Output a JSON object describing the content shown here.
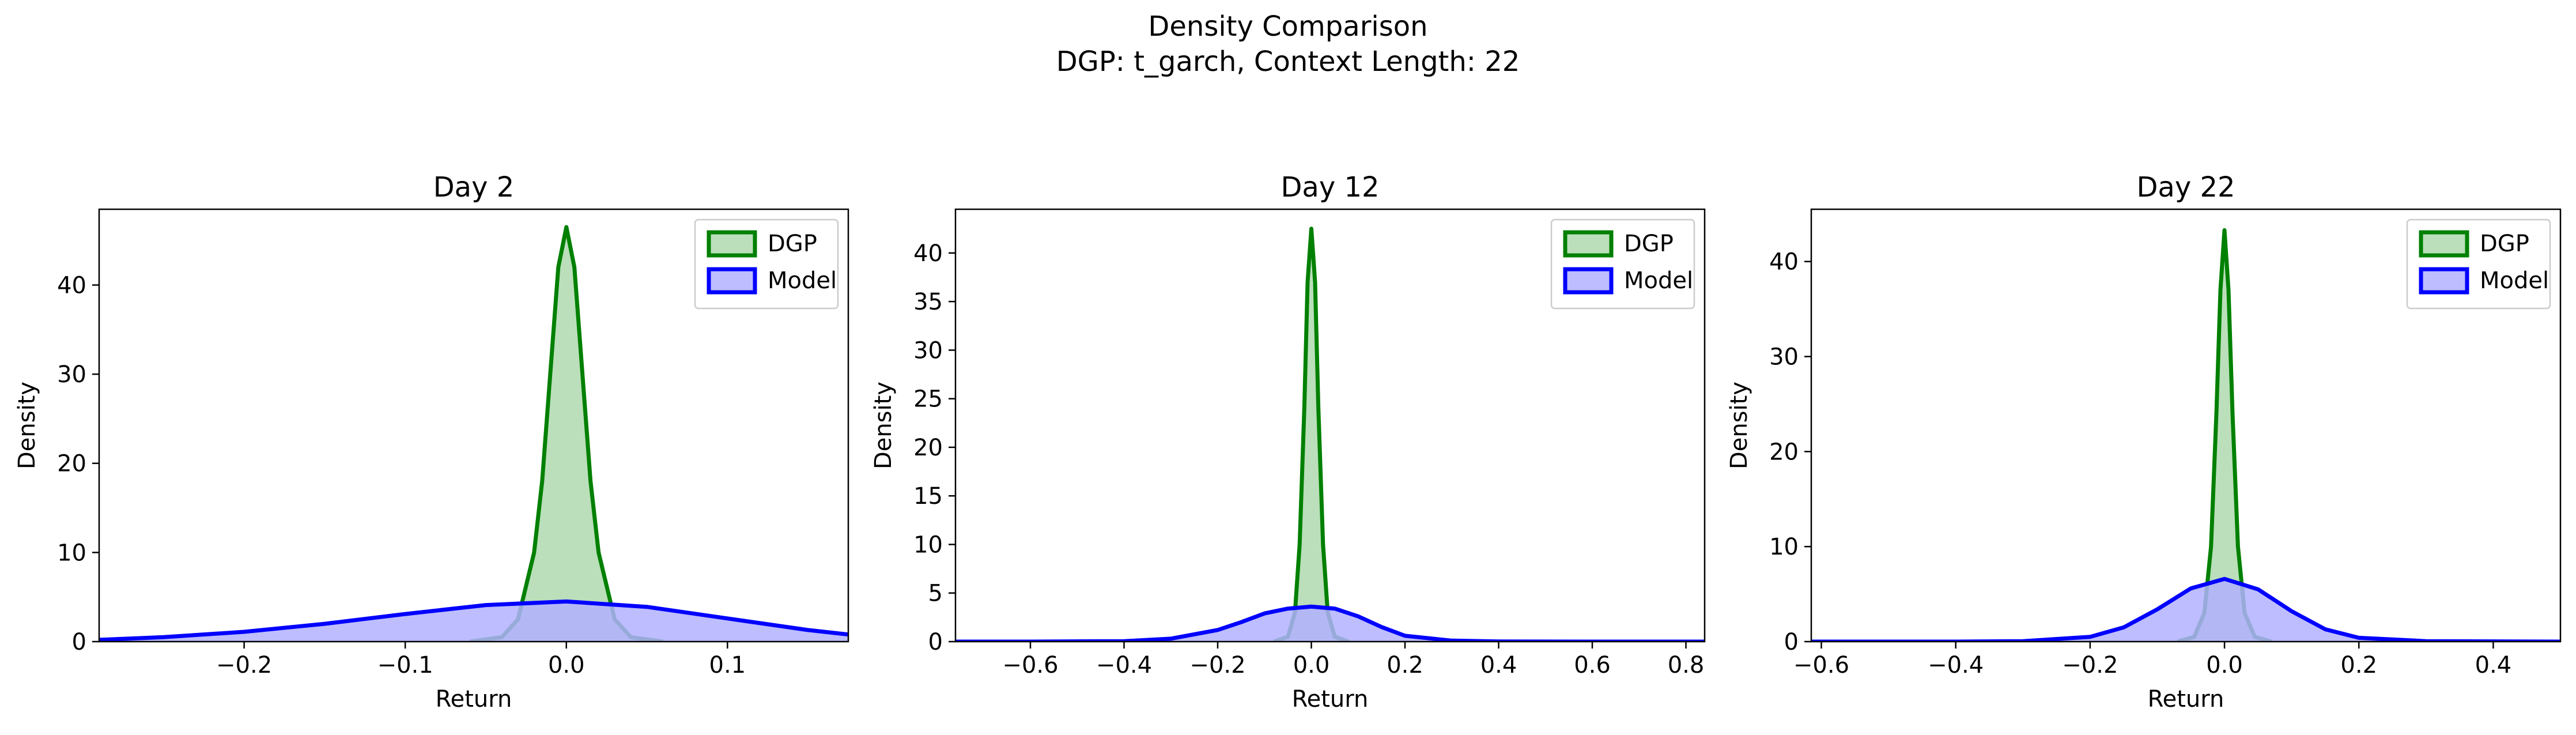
{
  "figure": {
    "suptitle_line1": "Density Comparison",
    "suptitle_line2": "DGP: t_garch, Context Length: 22"
  },
  "colors": {
    "dgp_line": "#008000",
    "dgp_fill": "#b3dbb3",
    "model_line": "#0000ff",
    "model_fill": "#b2b2ff"
  },
  "chart_data": [
    {
      "type": "area",
      "title": "Day 2",
      "xlabel": "Return",
      "ylabel": "Density",
      "xlim": [
        -0.29,
        0.175
      ],
      "ylim": [
        0,
        48.5
      ],
      "xticks": [
        -0.2,
        -0.1,
        0.0,
        0.1
      ],
      "xtick_labels": [
        "−0.2",
        "−0.1",
        "0.0",
        "0.1"
      ],
      "yticks": [
        0,
        10,
        20,
        30,
        40
      ],
      "grid": false,
      "legend_position": "top-right",
      "series": [
        {
          "name": "DGP",
          "x": [
            -0.06,
            -0.04,
            -0.03,
            -0.02,
            -0.015,
            -0.01,
            -0.005,
            0.0,
            0.005,
            0.01,
            0.015,
            0.02,
            0.03,
            0.04,
            0.06
          ],
          "values": [
            0,
            0.5,
            2.5,
            10,
            18,
            30,
            42,
            46.5,
            42,
            30,
            18,
            10,
            2.5,
            0.5,
            0
          ]
        },
        {
          "name": "Model",
          "x": [
            -0.29,
            -0.25,
            -0.2,
            -0.15,
            -0.1,
            -0.05,
            0.0,
            0.05,
            0.1,
            0.15,
            0.175
          ],
          "values": [
            0.2,
            0.5,
            1.1,
            2.0,
            3.1,
            4.1,
            4.5,
            3.9,
            2.6,
            1.3,
            0.8
          ]
        }
      ]
    },
    {
      "type": "area",
      "title": "Day 12",
      "xlabel": "Return",
      "ylabel": "Density",
      "xlim": [
        -0.76,
        0.84
      ],
      "ylim": [
        0,
        44.5
      ],
      "xticks": [
        -0.6,
        -0.4,
        -0.2,
        0.0,
        0.2,
        0.4,
        0.6,
        0.8
      ],
      "xtick_labels": [
        "−0.6",
        "−0.4",
        "−0.2",
        "0.0",
        "0.2",
        "0.4",
        "0.6",
        "0.8"
      ],
      "yticks": [
        0,
        5,
        10,
        15,
        20,
        25,
        30,
        35,
        40
      ],
      "grid": false,
      "legend_position": "top-right",
      "series": [
        {
          "name": "DGP",
          "x": [
            -0.08,
            -0.05,
            -0.035,
            -0.025,
            -0.015,
            -0.008,
            0.0,
            0.008,
            0.015,
            0.025,
            0.035,
            0.05,
            0.08
          ],
          "values": [
            0,
            0.5,
            3,
            10,
            24,
            37,
            42.5,
            37,
            24,
            10,
            3,
            0.5,
            0
          ]
        },
        {
          "name": "Model",
          "x": [
            -0.76,
            -0.6,
            -0.4,
            -0.3,
            -0.2,
            -0.15,
            -0.1,
            -0.05,
            0.0,
            0.05,
            0.1,
            0.15,
            0.2,
            0.3,
            0.4,
            0.6,
            0.84
          ],
          "values": [
            0,
            0,
            0.05,
            0.3,
            1.2,
            2.0,
            2.9,
            3.4,
            3.6,
            3.4,
            2.6,
            1.5,
            0.6,
            0.1,
            0.02,
            0,
            0
          ]
        }
      ]
    },
    {
      "type": "area",
      "title": "Day 22",
      "xlabel": "Return",
      "ylabel": "Density",
      "xlim": [
        -0.615,
        0.5
      ],
      "ylim": [
        0,
        45.5
      ],
      "xticks": [
        -0.6,
        -0.4,
        -0.2,
        0.0,
        0.2,
        0.4
      ],
      "xtick_labels": [
        "−0.6",
        "−0.4",
        "−0.2",
        "0.0",
        "0.2",
        "0.4"
      ],
      "yticks": [
        0,
        10,
        20,
        30,
        40
      ],
      "grid": false,
      "legend_position": "top-right",
      "series": [
        {
          "name": "DGP",
          "x": [
            -0.07,
            -0.045,
            -0.03,
            -0.02,
            -0.012,
            -0.006,
            0.0,
            0.006,
            0.012,
            0.02,
            0.03,
            0.045,
            0.07
          ],
          "values": [
            0,
            0.5,
            3,
            10,
            24,
            37,
            43.3,
            37,
            24,
            10,
            3,
            0.5,
            0
          ]
        },
        {
          "name": "Model",
          "x": [
            -0.615,
            -0.4,
            -0.3,
            -0.2,
            -0.15,
            -0.1,
            -0.05,
            0.0,
            0.05,
            0.1,
            0.15,
            0.2,
            0.3,
            0.5
          ],
          "values": [
            0,
            0,
            0.05,
            0.5,
            1.5,
            3.4,
            5.6,
            6.6,
            5.5,
            3.2,
            1.3,
            0.4,
            0.05,
            0
          ]
        }
      ]
    }
  ]
}
